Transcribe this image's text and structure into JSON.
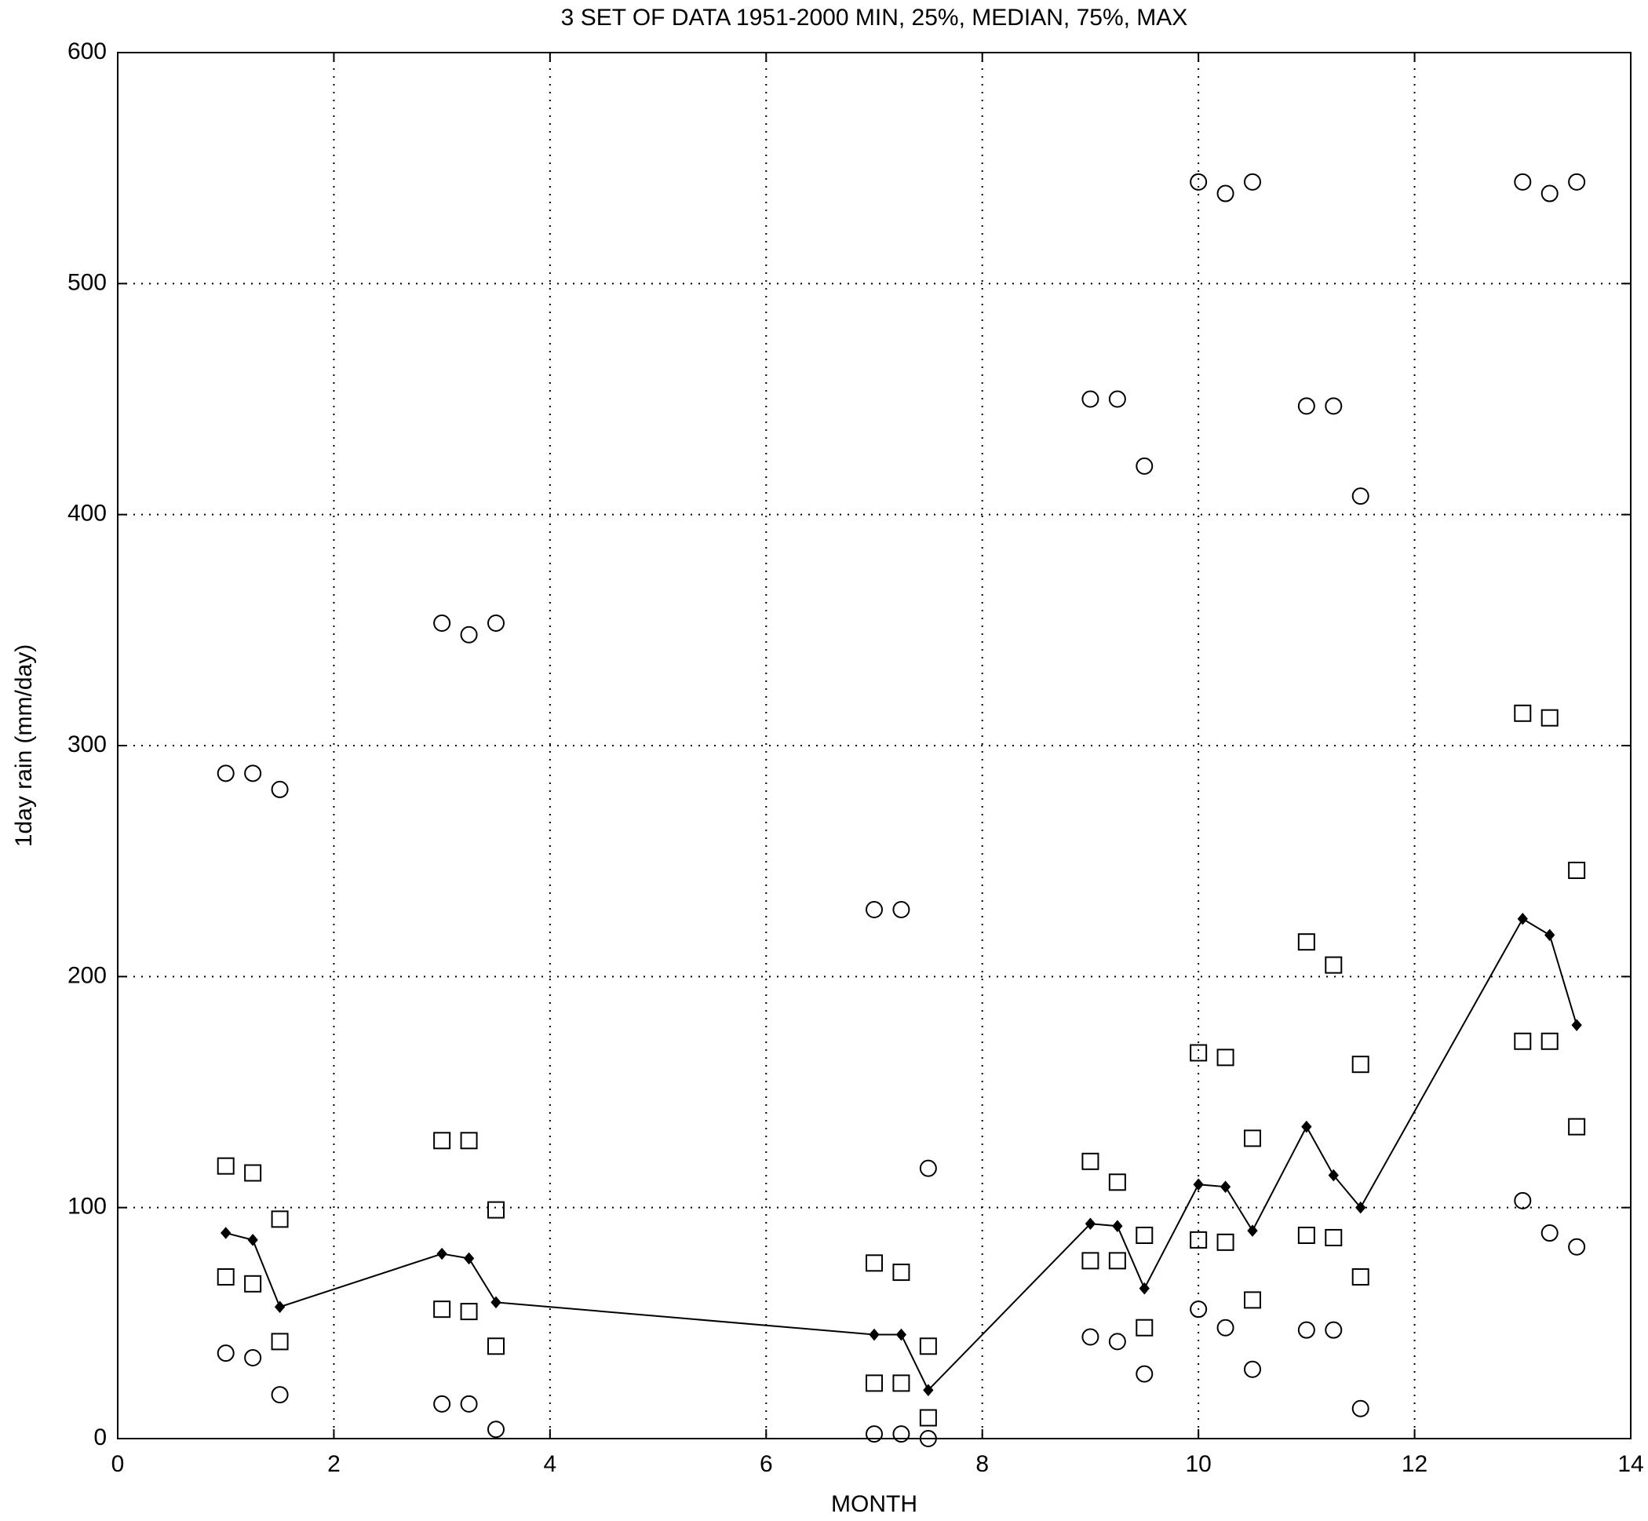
{
  "chart_data": {
    "type": "scatter",
    "title": "3 SET OF DATA 1951-2000  MIN, 25%, MEDIAN, 75%, MAX",
    "x_label": "MONTH",
    "y_label": "1day rain (mm/day)",
    "x": [
      1,
      1.25,
      1.5,
      3,
      3.25,
      3.5,
      7,
      7.25,
      7.5,
      9,
      9.25,
      9.5,
      10,
      10.25,
      10.5,
      11,
      11.25,
      11.5,
      13,
      13.25,
      13.5
    ],
    "series": [
      {
        "color": "#000000",
        "marker": "circle",
        "line": false,
        "values": [
          288,
          288,
          281,
          353,
          348,
          353,
          229,
          229,
          117,
          450,
          450,
          421,
          544,
          539,
          544,
          447,
          447,
          408,
          544,
          539,
          544
        ]
      },
      {
        "color": "#000000",
        "marker": "square",
        "line": false,
        "values": [
          118,
          115,
          95,
          129,
          129,
          99,
          76,
          72,
          40,
          120,
          111,
          88,
          167,
          165,
          130,
          215,
          205,
          162,
          314,
          312,
          246
        ]
      },
      {
        "color": "#000000",
        "marker": "diamond",
        "line": true,
        "values": [
          89,
          86,
          57,
          80,
          78,
          59,
          45,
          45,
          21,
          93,
          92,
          65,
          110,
          109,
          90,
          135,
          114,
          100,
          225,
          218,
          179
        ]
      },
      {
        "color": "#000000",
        "marker": "square",
        "line": false,
        "values": [
          70,
          67,
          42,
          56,
          55,
          40,
          24,
          24,
          9,
          77,
          77,
          48,
          86,
          85,
          60,
          88,
          87,
          70,
          172,
          172,
          135
        ]
      },
      {
        "color": "#000000",
        "marker": "circle",
        "line": false,
        "values": [
          37,
          35,
          19,
          15,
          15,
          4,
          2,
          2,
          0,
          44,
          42,
          28,
          56,
          48,
          30,
          47,
          47,
          13,
          103,
          89,
          83
        ]
      }
    ],
    "xlim": [
      0,
      14
    ],
    "ylim": [
      0,
      600
    ],
    "xticks": [
      0,
      2,
      4,
      6,
      8,
      10,
      12,
      14
    ],
    "yticks": [
      0,
      100,
      200,
      300,
      400,
      500,
      600
    ],
    "grid": true
  }
}
